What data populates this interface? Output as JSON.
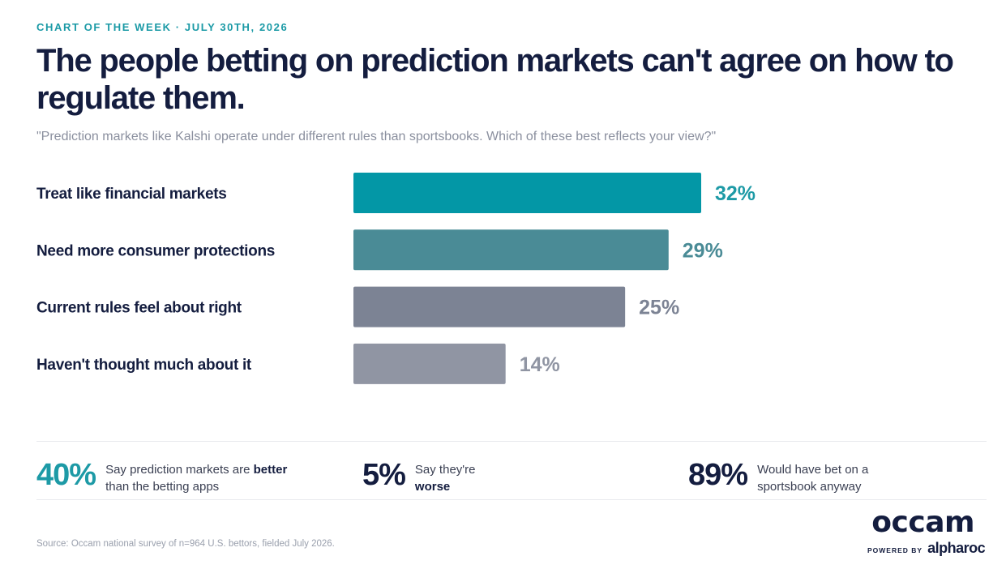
{
  "header": {
    "eyebrow": "CHART OF THE WEEK · JULY 30TH, 2026",
    "title": "The people betting on prediction markets can't agree on how to regulate them.",
    "subtitle": "\"Prediction markets like Kalshi operate under different rules than sportsbooks. Which of these best reflects your view?\""
  },
  "chart_data": {
    "type": "bar",
    "orientation": "horizontal",
    "categories": [
      "Treat like financial markets",
      "Need more consumer protections",
      "Current rules feel about right",
      "Haven't thought much about it"
    ],
    "values": [
      32,
      29,
      25,
      14
    ],
    "value_labels": [
      "32%",
      "29%",
      "25%",
      "14%"
    ],
    "colors": [
      "#0397a6",
      "#4a8b96",
      "#7c8394",
      "#9095a3"
    ],
    "label_colors": [
      "#1d9aa6",
      "#4a8b96",
      "#7c8394",
      "#9095a3"
    ],
    "unit": "%",
    "grid": false,
    "legend": "none"
  },
  "stats": [
    {
      "value": "40%",
      "text_pre": "Say prediction markets are ",
      "text_bold": "better",
      "text_post": " than the betting apps",
      "color": "#1d9aa6"
    },
    {
      "value": "5%",
      "text_pre": "Say they're ",
      "text_bold": "worse",
      "text_post": "",
      "color": "#141d3f"
    },
    {
      "value": "89%",
      "text_pre": "Would have bet on a sportsbook anyway",
      "text_bold": "",
      "text_post": "",
      "color": "#141d3f"
    }
  ],
  "footer": {
    "source": "Source: Occam national survey of n=964 U.S. bettors, fielded July 2026.",
    "logo_main": "occam",
    "logo_powered": "POWERED BY",
    "logo_brand": "alpharoc"
  }
}
